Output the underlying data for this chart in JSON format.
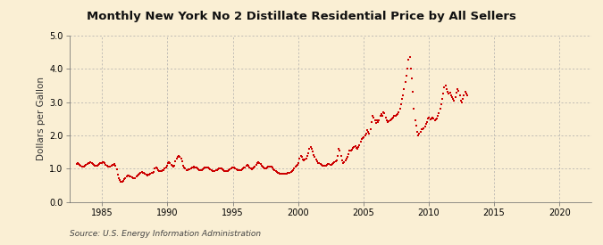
{
  "title": "Monthly New York No 2 Distillate Residential Price by All Sellers",
  "ylabel": "Dollars per Gallon",
  "source": "Source: U.S. Energy Information Administration",
  "background_color": "#faefd4",
  "line_color": "#cc0000",
  "ylim": [
    0.0,
    5.0
  ],
  "yticks": [
    0.0,
    1.0,
    2.0,
    3.0,
    4.0,
    5.0
  ],
  "xtick_years": [
    1985,
    1990,
    1995,
    2000,
    2005,
    2010,
    2015,
    2020
  ],
  "data": [
    [
      1983,
      1,
      1.15
    ],
    [
      1983,
      2,
      1.17
    ],
    [
      1983,
      3,
      1.14
    ],
    [
      1983,
      4,
      1.11
    ],
    [
      1983,
      5,
      1.09
    ],
    [
      1983,
      6,
      1.07
    ],
    [
      1983,
      7,
      1.06
    ],
    [
      1983,
      8,
      1.07
    ],
    [
      1983,
      9,
      1.09
    ],
    [
      1983,
      10,
      1.12
    ],
    [
      1983,
      11,
      1.14
    ],
    [
      1983,
      12,
      1.16
    ],
    [
      1984,
      1,
      1.18
    ],
    [
      1984,
      2,
      1.19
    ],
    [
      1984,
      3,
      1.17
    ],
    [
      1984,
      4,
      1.14
    ],
    [
      1984,
      5,
      1.12
    ],
    [
      1984,
      6,
      1.1
    ],
    [
      1984,
      7,
      1.09
    ],
    [
      1984,
      8,
      1.1
    ],
    [
      1984,
      9,
      1.12
    ],
    [
      1984,
      10,
      1.14
    ],
    [
      1984,
      11,
      1.16
    ],
    [
      1984,
      12,
      1.18
    ],
    [
      1985,
      1,
      1.2
    ],
    [
      1985,
      2,
      1.19
    ],
    [
      1985,
      3,
      1.16
    ],
    [
      1985,
      4,
      1.13
    ],
    [
      1985,
      5,
      1.1
    ],
    [
      1985,
      6,
      1.07
    ],
    [
      1985,
      7,
      1.06
    ],
    [
      1985,
      8,
      1.06
    ],
    [
      1985,
      9,
      1.08
    ],
    [
      1985,
      10,
      1.11
    ],
    [
      1985,
      11,
      1.13
    ],
    [
      1985,
      12,
      1.14
    ],
    [
      1986,
      1,
      1.1
    ],
    [
      1986,
      2,
      0.98
    ],
    [
      1986,
      3,
      0.82
    ],
    [
      1986,
      4,
      0.72
    ],
    [
      1986,
      5,
      0.67
    ],
    [
      1986,
      6,
      0.62
    ],
    [
      1986,
      7,
      0.6
    ],
    [
      1986,
      8,
      0.63
    ],
    [
      1986,
      9,
      0.68
    ],
    [
      1986,
      10,
      0.73
    ],
    [
      1986,
      11,
      0.78
    ],
    [
      1986,
      12,
      0.8
    ],
    [
      1987,
      1,
      0.79
    ],
    [
      1987,
      2,
      0.78
    ],
    [
      1987,
      3,
      0.76
    ],
    [
      1987,
      4,
      0.74
    ],
    [
      1987,
      5,
      0.73
    ],
    [
      1987,
      6,
      0.72
    ],
    [
      1987,
      7,
      0.73
    ],
    [
      1987,
      8,
      0.76
    ],
    [
      1987,
      9,
      0.8
    ],
    [
      1987,
      10,
      0.83
    ],
    [
      1987,
      11,
      0.86
    ],
    [
      1987,
      12,
      0.89
    ],
    [
      1988,
      1,
      0.9
    ],
    [
      1988,
      2,
      0.89
    ],
    [
      1988,
      3,
      0.87
    ],
    [
      1988,
      4,
      0.85
    ],
    [
      1988,
      5,
      0.83
    ],
    [
      1988,
      6,
      0.81
    ],
    [
      1988,
      7,
      0.82
    ],
    [
      1988,
      8,
      0.83
    ],
    [
      1988,
      9,
      0.85
    ],
    [
      1988,
      10,
      0.87
    ],
    [
      1988,
      11,
      0.89
    ],
    [
      1988,
      12,
      0.91
    ],
    [
      1989,
      1,
      1.0
    ],
    [
      1989,
      2,
      1.05
    ],
    [
      1989,
      3,
      1.02
    ],
    [
      1989,
      4,
      0.97
    ],
    [
      1989,
      5,
      0.94
    ],
    [
      1989,
      6,
      0.92
    ],
    [
      1989,
      7,
      0.93
    ],
    [
      1989,
      8,
      0.95
    ],
    [
      1989,
      9,
      0.97
    ],
    [
      1989,
      10,
      1.0
    ],
    [
      1989,
      11,
      1.04
    ],
    [
      1989,
      12,
      1.1
    ],
    [
      1990,
      1,
      1.18
    ],
    [
      1990,
      2,
      1.2
    ],
    [
      1990,
      3,
      1.18
    ],
    [
      1990,
      4,
      1.13
    ],
    [
      1990,
      5,
      1.1
    ],
    [
      1990,
      6,
      1.07
    ],
    [
      1990,
      7,
      1.08
    ],
    [
      1990,
      8,
      1.22
    ],
    [
      1990,
      9,
      1.32
    ],
    [
      1990,
      10,
      1.35
    ],
    [
      1990,
      11,
      1.38
    ],
    [
      1990,
      12,
      1.35
    ],
    [
      1991,
      1,
      1.32
    ],
    [
      1991,
      2,
      1.22
    ],
    [
      1991,
      3,
      1.1
    ],
    [
      1991,
      4,
      1.04
    ],
    [
      1991,
      5,
      1.0
    ],
    [
      1991,
      6,
      0.97
    ],
    [
      1991,
      7,
      0.97
    ],
    [
      1991,
      8,
      0.98
    ],
    [
      1991,
      9,
      0.99
    ],
    [
      1991,
      10,
      1.01
    ],
    [
      1991,
      11,
      1.03
    ],
    [
      1991,
      12,
      1.05
    ],
    [
      1992,
      1,
      1.06
    ],
    [
      1992,
      2,
      1.05
    ],
    [
      1992,
      3,
      1.03
    ],
    [
      1992,
      4,
      1.0
    ],
    [
      1992,
      5,
      0.98
    ],
    [
      1992,
      6,
      0.96
    ],
    [
      1992,
      7,
      0.96
    ],
    [
      1992,
      8,
      0.97
    ],
    [
      1992,
      9,
      0.99
    ],
    [
      1992,
      10,
      1.02
    ],
    [
      1992,
      11,
      1.04
    ],
    [
      1992,
      12,
      1.05
    ],
    [
      1993,
      1,
      1.05
    ],
    [
      1993,
      2,
      1.04
    ],
    [
      1993,
      3,
      1.01
    ],
    [
      1993,
      4,
      0.98
    ],
    [
      1993,
      5,
      0.95
    ],
    [
      1993,
      6,
      0.93
    ],
    [
      1993,
      7,
      0.92
    ],
    [
      1993,
      8,
      0.93
    ],
    [
      1993,
      9,
      0.95
    ],
    [
      1993,
      10,
      0.97
    ],
    [
      1993,
      11,
      0.99
    ],
    [
      1993,
      12,
      1.01
    ],
    [
      1994,
      1,
      1.02
    ],
    [
      1994,
      2,
      1.01
    ],
    [
      1994,
      3,
      0.99
    ],
    [
      1994,
      4,
      0.96
    ],
    [
      1994,
      5,
      0.94
    ],
    [
      1994,
      6,
      0.92
    ],
    [
      1994,
      7,
      0.92
    ],
    [
      1994,
      8,
      0.93
    ],
    [
      1994,
      9,
      0.96
    ],
    [
      1994,
      10,
      0.99
    ],
    [
      1994,
      11,
      1.01
    ],
    [
      1994,
      12,
      1.03
    ],
    [
      1995,
      1,
      1.04
    ],
    [
      1995,
      2,
      1.03
    ],
    [
      1995,
      3,
      1.01
    ],
    [
      1995,
      4,
      0.99
    ],
    [
      1995,
      5,
      0.97
    ],
    [
      1995,
      6,
      0.95
    ],
    [
      1995,
      7,
      0.96
    ],
    [
      1995,
      8,
      0.97
    ],
    [
      1995,
      9,
      0.99
    ],
    [
      1995,
      10,
      1.01
    ],
    [
      1995,
      11,
      1.03
    ],
    [
      1995,
      12,
      1.04
    ],
    [
      1996,
      1,
      1.1
    ],
    [
      1996,
      2,
      1.12
    ],
    [
      1996,
      3,
      1.08
    ],
    [
      1996,
      4,
      1.04
    ],
    [
      1996,
      5,
      1.01
    ],
    [
      1996,
      6,
      0.99
    ],
    [
      1996,
      7,
      1.01
    ],
    [
      1996,
      8,
      1.04
    ],
    [
      1996,
      9,
      1.07
    ],
    [
      1996,
      10,
      1.12
    ],
    [
      1996,
      11,
      1.18
    ],
    [
      1996,
      12,
      1.2
    ],
    [
      1997,
      1,
      1.18
    ],
    [
      1997,
      2,
      1.14
    ],
    [
      1997,
      3,
      1.1
    ],
    [
      1997,
      4,
      1.06
    ],
    [
      1997,
      5,
      1.03
    ],
    [
      1997,
      6,
      1.01
    ],
    [
      1997,
      7,
      1.02
    ],
    [
      1997,
      8,
      1.04
    ],
    [
      1997,
      9,
      1.06
    ],
    [
      1997,
      10,
      1.07
    ],
    [
      1997,
      11,
      1.07
    ],
    [
      1997,
      12,
      1.06
    ],
    [
      1998,
      1,
      1.03
    ],
    [
      1998,
      2,
      0.99
    ],
    [
      1998,
      3,
      0.96
    ],
    [
      1998,
      4,
      0.93
    ],
    [
      1998,
      5,
      0.9
    ],
    [
      1998,
      6,
      0.88
    ],
    [
      1998,
      7,
      0.87
    ],
    [
      1998,
      8,
      0.86
    ],
    [
      1998,
      9,
      0.86
    ],
    [
      1998,
      10,
      0.86
    ],
    [
      1998,
      11,
      0.86
    ],
    [
      1998,
      12,
      0.86
    ],
    [
      1999,
      1,
      0.86
    ],
    [
      1999,
      2,
      0.86
    ],
    [
      1999,
      3,
      0.87
    ],
    [
      1999,
      4,
      0.88
    ],
    [
      1999,
      5,
      0.89
    ],
    [
      1999,
      6,
      0.9
    ],
    [
      1999,
      7,
      0.93
    ],
    [
      1999,
      8,
      0.97
    ],
    [
      1999,
      9,
      1.01
    ],
    [
      1999,
      10,
      1.06
    ],
    [
      1999,
      11,
      1.1
    ],
    [
      1999,
      12,
      1.13
    ],
    [
      2000,
      1,
      1.18
    ],
    [
      2000,
      2,
      1.3
    ],
    [
      2000,
      3,
      1.4
    ],
    [
      2000,
      4,
      1.35
    ],
    [
      2000,
      5,
      1.28
    ],
    [
      2000,
      6,
      1.25
    ],
    [
      2000,
      7,
      1.27
    ],
    [
      2000,
      8,
      1.32
    ],
    [
      2000,
      9,
      1.38
    ],
    [
      2000,
      10,
      1.48
    ],
    [
      2000,
      11,
      1.6
    ],
    [
      2000,
      12,
      1.65
    ],
    [
      2001,
      1,
      1.6
    ],
    [
      2001,
      2,
      1.52
    ],
    [
      2001,
      3,
      1.42
    ],
    [
      2001,
      4,
      1.35
    ],
    [
      2001,
      5,
      1.28
    ],
    [
      2001,
      6,
      1.22
    ],
    [
      2001,
      7,
      1.18
    ],
    [
      2001,
      8,
      1.16
    ],
    [
      2001,
      9,
      1.14
    ],
    [
      2001,
      10,
      1.12
    ],
    [
      2001,
      11,
      1.1
    ],
    [
      2001,
      12,
      1.08
    ],
    [
      2002,
      1,
      1.08
    ],
    [
      2002,
      2,
      1.1
    ],
    [
      2002,
      3,
      1.12
    ],
    [
      2002,
      4,
      1.15
    ],
    [
      2002,
      5,
      1.15
    ],
    [
      2002,
      6,
      1.13
    ],
    [
      2002,
      7,
      1.12
    ],
    [
      2002,
      8,
      1.14
    ],
    [
      2002,
      9,
      1.17
    ],
    [
      2002,
      10,
      1.2
    ],
    [
      2002,
      11,
      1.22
    ],
    [
      2002,
      12,
      1.25
    ],
    [
      2003,
      1,
      1.38
    ],
    [
      2003,
      2,
      1.6
    ],
    [
      2003,
      3,
      1.55
    ],
    [
      2003,
      4,
      1.38
    ],
    [
      2003,
      5,
      1.25
    ],
    [
      2003,
      6,
      1.18
    ],
    [
      2003,
      7,
      1.2
    ],
    [
      2003,
      8,
      1.25
    ],
    [
      2003,
      9,
      1.3
    ],
    [
      2003,
      10,
      1.35
    ],
    [
      2003,
      11,
      1.45
    ],
    [
      2003,
      12,
      1.55
    ],
    [
      2004,
      1,
      1.55
    ],
    [
      2004,
      2,
      1.58
    ],
    [
      2004,
      3,
      1.62
    ],
    [
      2004,
      4,
      1.65
    ],
    [
      2004,
      5,
      1.68
    ],
    [
      2004,
      6,
      1.62
    ],
    [
      2004,
      7,
      1.6
    ],
    [
      2004,
      8,
      1.65
    ],
    [
      2004,
      9,
      1.72
    ],
    [
      2004,
      10,
      1.82
    ],
    [
      2004,
      11,
      1.9
    ],
    [
      2004,
      12,
      1.92
    ],
    [
      2005,
      1,
      1.95
    ],
    [
      2005,
      2,
      2.0
    ],
    [
      2005,
      3,
      2.05
    ],
    [
      2005,
      4,
      2.15
    ],
    [
      2005,
      5,
      2.1
    ],
    [
      2005,
      6,
      2.05
    ],
    [
      2005,
      7,
      2.2
    ],
    [
      2005,
      8,
      2.4
    ],
    [
      2005,
      9,
      2.6
    ],
    [
      2005,
      10,
      2.55
    ],
    [
      2005,
      11,
      2.45
    ],
    [
      2005,
      12,
      2.38
    ],
    [
      2006,
      1,
      2.45
    ],
    [
      2006,
      2,
      2.4
    ],
    [
      2006,
      3,
      2.45
    ],
    [
      2006,
      4,
      2.6
    ],
    [
      2006,
      5,
      2.65
    ],
    [
      2006,
      6,
      2.6
    ],
    [
      2006,
      7,
      2.7
    ],
    [
      2006,
      8,
      2.68
    ],
    [
      2006,
      9,
      2.55
    ],
    [
      2006,
      10,
      2.45
    ],
    [
      2006,
      11,
      2.4
    ],
    [
      2006,
      12,
      2.42
    ],
    [
      2007,
      1,
      2.45
    ],
    [
      2007,
      2,
      2.48
    ],
    [
      2007,
      3,
      2.5
    ],
    [
      2007,
      4,
      2.55
    ],
    [
      2007,
      5,
      2.6
    ],
    [
      2007,
      6,
      2.58
    ],
    [
      2007,
      7,
      2.62
    ],
    [
      2007,
      8,
      2.65
    ],
    [
      2007,
      9,
      2.7
    ],
    [
      2007,
      10,
      2.8
    ],
    [
      2007,
      11,
      2.95
    ],
    [
      2007,
      12,
      3.1
    ],
    [
      2008,
      1,
      3.2
    ],
    [
      2008,
      2,
      3.4
    ],
    [
      2008,
      3,
      3.6
    ],
    [
      2008,
      4,
      3.8
    ],
    [
      2008,
      5,
      4.0
    ],
    [
      2008,
      6,
      4.28
    ],
    [
      2008,
      7,
      4.35
    ],
    [
      2008,
      8,
      4.0
    ],
    [
      2008,
      9,
      3.7
    ],
    [
      2008,
      10,
      3.3
    ],
    [
      2008,
      11,
      2.8
    ],
    [
      2008,
      12,
      2.45
    ],
    [
      2009,
      1,
      2.3
    ],
    [
      2009,
      2,
      2.1
    ],
    [
      2009,
      3,
      2.0
    ],
    [
      2009,
      4,
      2.05
    ],
    [
      2009,
      5,
      2.1
    ],
    [
      2009,
      6,
      2.2
    ],
    [
      2009,
      7,
      2.18
    ],
    [
      2009,
      8,
      2.22
    ],
    [
      2009,
      9,
      2.28
    ],
    [
      2009,
      10,
      2.35
    ],
    [
      2009,
      11,
      2.4
    ],
    [
      2009,
      12,
      2.5
    ],
    [
      2010,
      1,
      2.55
    ],
    [
      2010,
      2,
      2.48
    ],
    [
      2010,
      3,
      2.5
    ],
    [
      2010,
      4,
      2.55
    ],
    [
      2010,
      5,
      2.5
    ],
    [
      2010,
      6,
      2.45
    ],
    [
      2010,
      7,
      2.48
    ],
    [
      2010,
      8,
      2.52
    ],
    [
      2010,
      9,
      2.58
    ],
    [
      2010,
      10,
      2.68
    ],
    [
      2010,
      11,
      2.8
    ],
    [
      2010,
      12,
      2.95
    ],
    [
      2011,
      1,
      3.1
    ],
    [
      2011,
      2,
      3.25
    ],
    [
      2011,
      3,
      3.45
    ],
    [
      2011,
      4,
      3.5
    ],
    [
      2011,
      5,
      3.4
    ],
    [
      2011,
      6,
      3.3
    ],
    [
      2011,
      7,
      3.25
    ],
    [
      2011,
      8,
      3.28
    ],
    [
      2011,
      9,
      3.2
    ],
    [
      2011,
      10,
      3.15
    ],
    [
      2011,
      11,
      3.1
    ],
    [
      2011,
      12,
      3.05
    ],
    [
      2012,
      1,
      3.15
    ],
    [
      2012,
      2,
      3.28
    ],
    [
      2012,
      3,
      3.38
    ],
    [
      2012,
      4,
      3.35
    ],
    [
      2012,
      5,
      3.2
    ],
    [
      2012,
      6,
      3.05
    ],
    [
      2012,
      7,
      3.0
    ],
    [
      2012,
      8,
      3.1
    ],
    [
      2012,
      9,
      3.2
    ],
    [
      2012,
      10,
      3.3
    ],
    [
      2012,
      11,
      3.25
    ],
    [
      2012,
      12,
      3.2
    ]
  ]
}
